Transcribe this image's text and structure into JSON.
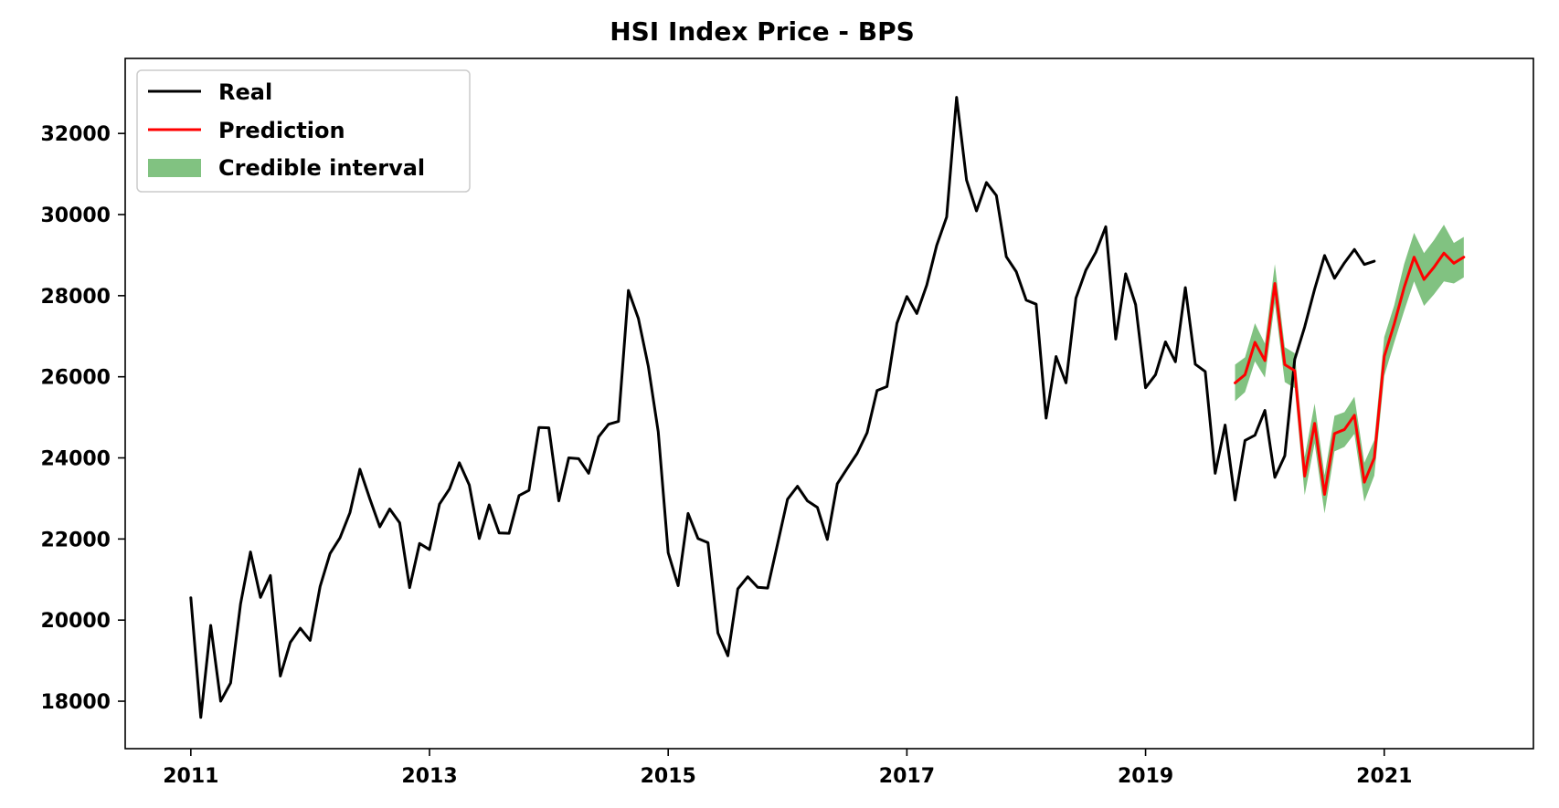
{
  "chart_data": {
    "type": "line",
    "title": "HSI Index Price - BPS",
    "xlabel": "",
    "ylabel": "",
    "xlim": [
      2010.45,
      2022.25
    ],
    "ylim": [
      16830,
      33850
    ],
    "x_ticks": [
      2011,
      2013,
      2015,
      2017,
      2019,
      2021
    ],
    "x_tick_labels": [
      "2011",
      "2013",
      "2015",
      "2017",
      "2019",
      "2021"
    ],
    "y_ticks": [
      18000,
      20000,
      22000,
      24000,
      26000,
      28000,
      30000,
      32000
    ],
    "y_tick_labels": [
      "18000",
      "20000",
      "22000",
      "24000",
      "26000",
      "28000",
      "30000",
      "32000"
    ],
    "grid": false,
    "legend_position": "top-left",
    "legend": [
      "Real",
      "Prediction",
      "Credible interval"
    ],
    "colors": {
      "real": "#000000",
      "prediction": "#ff0000",
      "interval": "#81c281"
    },
    "series": [
      {
        "name": "Real",
        "start": 2011.0,
        "step_years": 0.0833333,
        "values": [
          20550,
          17600,
          19870,
          18000,
          18450,
          20400,
          21680,
          20560,
          21100,
          18620,
          19450,
          19800,
          19500,
          20830,
          21640,
          22030,
          22650,
          23720,
          22990,
          22300,
          22740,
          22400,
          20800,
          21890,
          21740,
          22860,
          23230,
          23880,
          23330,
          22010,
          22840,
          22150,
          22140,
          23070,
          23200,
          24750,
          24740,
          22940,
          24000,
          23980,
          23620,
          24520,
          24830,
          24900,
          28130,
          27440,
          26260,
          24640,
          21660,
          20850,
          22630,
          22010,
          21910,
          19680,
          19120,
          20770,
          21070,
          20810,
          20790,
          21880,
          22980,
          23300,
          22940,
          22780,
          21990,
          23360,
          23740,
          24110,
          24620,
          25660,
          25760,
          27320,
          27980,
          27560,
          28260,
          29240,
          29940,
          32890,
          30850,
          30090,
          30790,
          30470,
          28960,
          28590,
          27890,
          27790,
          24980,
          26500,
          25850,
          27940,
          28630,
          29070,
          29700,
          26930,
          28540,
          27780,
          25730,
          26050,
          26860,
          26370,
          28200,
          26310,
          26130,
          23620,
          24810,
          22960,
          24430,
          24560,
          25170,
          23520,
          24050,
          26430,
          27230,
          28160,
          28990,
          28430,
          28810,
          29140,
          28770,
          28850
        ]
      },
      {
        "name": "Prediction",
        "start": 2019.75,
        "step_years": 0.0833333,
        "values": [
          25850,
          26050,
          26850,
          26400,
          28300,
          26300,
          26150,
          23550,
          24850,
          23100,
          24600,
          24700,
          25050,
          23400,
          24000,
          26500,
          27300,
          28200,
          28950,
          28400,
          28700,
          29050,
          28800,
          28950
        ]
      },
      {
        "name": "Credible interval",
        "start": 2019.75,
        "step_years": 0.0833333,
        "lower": [
          25400,
          25620,
          26380,
          25980,
          27820,
          25870,
          25720,
          23080,
          24360,
          22630,
          24160,
          24270,
          24590,
          22920,
          23560,
          26020,
          26840,
          27620,
          28350,
          27750,
          28030,
          28350,
          28300,
          28450
        ],
        "upper": [
          26300,
          26480,
          27320,
          26820,
          28780,
          26730,
          26580,
          24020,
          25340,
          23570,
          25040,
          25130,
          25510,
          23880,
          24440,
          26980,
          27760,
          28780,
          29550,
          29050,
          29370,
          29750,
          29300,
          29450
        ]
      }
    ]
  }
}
